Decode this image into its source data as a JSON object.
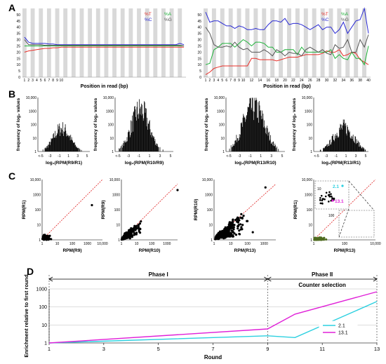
{
  "panel_letters": [
    "A",
    "B",
    "C",
    "D"
  ],
  "chart_data": [
    {
      "panel": "A",
      "part": "left",
      "type": "line",
      "xlabel": "Position in read (bp)",
      "ylim": [
        0,
        55
      ],
      "yticks": [
        "0",
        "5",
        "10",
        "15",
        "20",
        "25",
        "30",
        "35",
        "40",
        "45",
        "50"
      ],
      "x_ticks": [
        "1",
        "2",
        "3",
        "4",
        "5",
        "6",
        "7",
        "8",
        "9",
        "10"
      ],
      "legend": [
        "%T",
        "%A",
        "%C",
        "%G"
      ],
      "series_colors": [
        "#e8302a",
        "#1fb33a",
        "#2a2ad4",
        "#555555"
      ],
      "series": [
        {
          "name": "%T",
          "values": [
            20,
            21,
            21.5,
            22,
            22.5,
            23,
            23,
            23.5,
            23.5,
            24,
            24,
            24,
            24,
            24,
            24,
            24,
            24,
            24,
            24,
            24,
            24,
            24,
            24,
            24,
            24,
            24,
            24,
            24,
            24,
            24,
            24,
            24,
            24,
            24,
            24,
            24,
            24,
            24,
            24,
            24
          ]
        },
        {
          "name": "%A",
          "values": [
            25,
            25,
            25,
            25,
            25,
            25,
            25,
            25,
            25,
            25,
            25,
            25,
            25,
            25,
            25,
            25,
            25,
            25,
            25,
            25,
            25,
            25,
            25,
            25,
            25,
            25,
            25,
            25,
            25,
            25,
            25,
            25,
            25,
            25,
            25,
            25,
            25,
            25,
            25,
            25
          ]
        },
        {
          "name": "%C",
          "values": [
            32,
            28,
            27,
            27,
            27,
            27,
            26.5,
            26.5,
            26,
            26,
            26,
            26,
            26,
            26,
            26,
            26,
            26,
            26,
            26,
            26,
            26,
            26,
            26,
            26,
            26,
            26,
            26,
            26,
            26,
            26,
            26,
            26,
            26,
            26,
            26,
            26,
            26,
            26,
            27,
            26
          ]
        },
        {
          "name": "%G",
          "values": [
            30,
            26,
            26,
            26,
            26,
            25.5,
            25.5,
            25.5,
            25.5,
            25.5,
            25.5,
            25.5,
            25.5,
            25.5,
            25.5,
            25.5,
            25.5,
            25.5,
            25.5,
            25.5,
            25.5,
            25.5,
            25.5,
            25.5,
            25.5,
            25.5,
            25.5,
            25.5,
            25.5,
            25.5,
            25.5,
            25.5,
            25.5,
            25.5,
            25.5,
            25.5,
            25.5,
            25.5,
            25.5,
            25
          ]
        }
      ]
    },
    {
      "panel": "A",
      "part": "right",
      "type": "line",
      "xlabel": "Position in read (bp)",
      "ylim": [
        0,
        55
      ],
      "yticks": [
        "0",
        "5",
        "10",
        "15",
        "20",
        "25",
        "30",
        "35",
        "40",
        "45",
        "50"
      ],
      "x_ticks": [
        "1",
        "2",
        "3",
        "4",
        "5",
        "6",
        "7",
        "8",
        "9",
        "10",
        "12",
        "14",
        "16",
        "18",
        "20",
        "22",
        "24",
        "26",
        "28",
        "30",
        "32",
        "34",
        "36",
        "38",
        "40"
      ],
      "legend": [
        "%T",
        "%A",
        "%C",
        "%G"
      ],
      "series_colors": [
        "#e8302a",
        "#1fb33a",
        "#2a2ad4",
        "#555555"
      ],
      "series": [
        {
          "name": "%T",
          "values": [
            2,
            4,
            7,
            8,
            9,
            9,
            9,
            9,
            9,
            9,
            9,
            15,
            15,
            14,
            14,
            14,
            14,
            13,
            14,
            15,
            16,
            16,
            16,
            17,
            18,
            18,
            18,
            18,
            19,
            21,
            20,
            20,
            22,
            17,
            18,
            20,
            19,
            14,
            12,
            10
          ]
        },
        {
          "name": "%A",
          "values": [
            10,
            11,
            22,
            24,
            27,
            27,
            27,
            24,
            27,
            30,
            28,
            25,
            28,
            28,
            27,
            24,
            24,
            20,
            20,
            22,
            22,
            22,
            18,
            24,
            20,
            20,
            20,
            20,
            20,
            20,
            22,
            15,
            18,
            15,
            14,
            20,
            15,
            15,
            10,
            25
          ]
        },
        {
          "name": "%C",
          "values": [
            52,
            44,
            45,
            45,
            43,
            41,
            41,
            39,
            41,
            40,
            38,
            38,
            39,
            38,
            38,
            42,
            45,
            45,
            44,
            47,
            42,
            43,
            43,
            42,
            40,
            38,
            40,
            42,
            38,
            40,
            40,
            35,
            38,
            44,
            35,
            40,
            45,
            46,
            55,
            35
          ]
        },
        {
          "name": "%G",
          "values": [
            40,
            35,
            26,
            24,
            24,
            25,
            24,
            28,
            24,
            22,
            23,
            20,
            20,
            20,
            22,
            20,
            17,
            22,
            20,
            17,
            20,
            19,
            19,
            17,
            22,
            24,
            22,
            20,
            22,
            19,
            18,
            26,
            23,
            24,
            30,
            20,
            20,
            30,
            24,
            34
          ]
        }
      ]
    },
    {
      "panel": "B",
      "type": "bar",
      "ylabel": "frequency of log₂ values",
      "y_scale": "log",
      "ylim": [
        1,
        10000
      ],
      "yticks": [
        "1",
        "10",
        "100",
        "1000",
        "10,000"
      ],
      "x_ticks": [
        "<-5",
        "-3",
        "-1",
        "1",
        "3",
        "5"
      ],
      "subplots": [
        {
          "xlabel": "log₂(RPM(R9/R1)",
          "peak_log10": 2.0,
          "center": -0.5,
          "spread": 1.8,
          "ymax_label": "10,000"
        },
        {
          "xlabel": "log₂(RPM(R10/R9)",
          "peak_log10": 3.6,
          "center": -0.8,
          "spread": 1.7,
          "ymax_label": "10,000"
        },
        {
          "xlabel": "log₂(RPM(R13/R10)",
          "peak_log10": 3.9,
          "center": -0.4,
          "spread": 2.0,
          "ymax_label": "10,000"
        },
        {
          "xlabel": "log₂(RPM(R13/R1)",
          "peak_log10": 2.1,
          "center": 0.5,
          "spread": 2.0,
          "ymax_label": "10,000"
        }
      ]
    },
    {
      "panel": "C",
      "type": "scatter",
      "x_scale": "log",
      "y_scale": "log",
      "yticks": [
        "1",
        "10",
        "100",
        "1000",
        "10,000"
      ],
      "subplots": [
        {
          "xlabel": "RPM(R9)",
          "ylabel": "RPM(R1)",
          "xticks": [
            "1",
            "10",
            "100",
            "1000",
            "10,000"
          ],
          "point_color": "#000000",
          "density": 0.6,
          "outliers": [
            [
              2000,
              200
            ]
          ]
        },
        {
          "xlabel": "RPM(R10)",
          "ylabel": "RPM(R9)",
          "xticks": [
            "1",
            "10",
            "100",
            "1000"
          ],
          "point_color": "#000000",
          "density": 1.6,
          "outliers": [
            [
              5000,
              2000
            ]
          ]
        },
        {
          "xlabel": "RPM(R13)",
          "ylabel": "RPM(R10)",
          "xticks": [
            "1",
            "10",
            "100",
            "1000"
          ],
          "point_color": "#000000",
          "density": 2.8,
          "outliers": [
            [
              1200,
              3000
            ]
          ]
        },
        {
          "xlabel": "RPM(R13)",
          "ylabel": "RPM(R1)",
          "xticks": [
            "1",
            "100",
            "10,000"
          ],
          "point_color": "#4f6b20",
          "density": 0.9,
          "inset_labels": [
            "2.1",
            "13.1"
          ],
          "inset_ticks": [
            "10",
            "100"
          ]
        }
      ]
    },
    {
      "panel": "D",
      "type": "line",
      "xlabel": "Round",
      "ylabel": "Enrichment relative to first round",
      "y_scale": "log",
      "ylim": [
        1,
        1000
      ],
      "yticks": [
        "1",
        "10",
        "100",
        "1000"
      ],
      "xticks": [
        "1",
        "3",
        "5",
        "7",
        "9",
        "11",
        "13"
      ],
      "x_range": [
        1,
        13
      ],
      "phase_labels": [
        "Phase I",
        "Phase II",
        "Counter selection"
      ],
      "series": [
        {
          "name": "2.1",
          "color": "#2cd0e0",
          "x": [
            1,
            9,
            10,
            13
          ],
          "values": [
            1,
            2.5,
            2.0,
            200
          ]
        },
        {
          "name": "13.1",
          "color": "#e020d8",
          "x": [
            1,
            9,
            10,
            13
          ],
          "values": [
            1,
            6.0,
            40,
            700
          ]
        }
      ]
    }
  ]
}
